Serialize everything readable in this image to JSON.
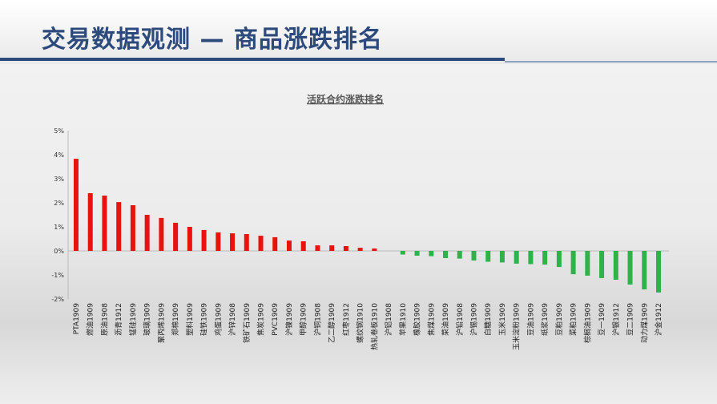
{
  "slide": {
    "title": "交易数据观测 — 商品涨跌排名"
  },
  "chart_data": {
    "type": "bar",
    "title": "活跃合约涨跌排名",
    "ylim": [
      -2,
      5
    ],
    "yticks": [
      "-2%",
      "-1%",
      "0%",
      "1%",
      "2%",
      "3%",
      "4%",
      "5%"
    ],
    "ytick_values": [
      -2,
      -1,
      0,
      1,
      2,
      3,
      4,
      5
    ],
    "positive_color": "#e8130f",
    "negative_color": "#2fb24a",
    "categories": [
      "PTA1909",
      "燃油1909",
      "原油1908",
      "沥青1912",
      "锰硅1909",
      "玻璃1909",
      "聚丙烯1909",
      "郑棉1909",
      "塑料1909",
      "硅铁1909",
      "鸡蛋1909",
      "沪锌1908",
      "铁矿石1909",
      "焦炭1909",
      "PVC1909",
      "沪镍1909",
      "甲醇1909",
      "沪铜1908",
      "乙二醇1909",
      "红枣1912",
      "螺纹钢1910",
      "热轧卷板1910",
      "沪铝1908",
      "苹果1910",
      "橡胶1909",
      "焦煤1909",
      "菜油1909",
      "沪铅1908",
      "沪锡1909",
      "白糖1909",
      "玉米1909",
      "玉米淀粉1909",
      "豆油1909",
      "纸浆1909",
      "豆粕1909",
      "菜粕1909",
      "棕榈油1909",
      "豆一1909",
      "沪银1912",
      "豆二1909",
      "动力煤1909",
      "沪金1912"
    ],
    "values": [
      3.83,
      2.4,
      2.3,
      2.03,
      1.9,
      1.5,
      1.37,
      1.17,
      1.0,
      0.87,
      0.77,
      0.73,
      0.7,
      0.63,
      0.57,
      0.43,
      0.4,
      0.23,
      0.23,
      0.2,
      0.13,
      0.1,
      0,
      -0.15,
      -0.2,
      -0.22,
      -0.3,
      -0.32,
      -0.4,
      -0.45,
      -0.48,
      -0.53,
      -0.55,
      -0.57,
      -0.67,
      -0.97,
      -1.03,
      -1.13,
      -1.2,
      -1.4,
      -1.6,
      -1.73
    ]
  }
}
